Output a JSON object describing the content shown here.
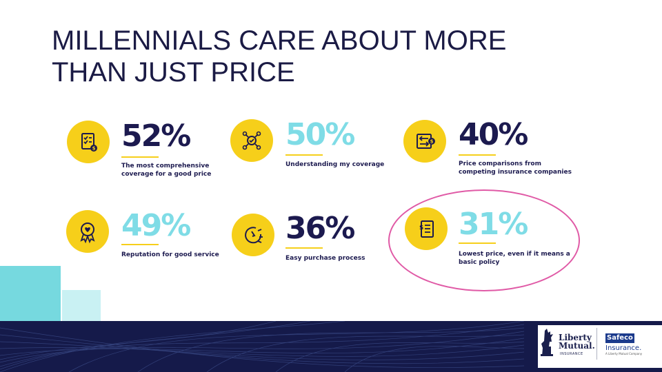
{
  "title_line1": "MILLENNIALS CARE ABOUT MORE",
  "title_line2": "THAN JUST PRICE",
  "stats": [
    {
      "value": "52%",
      "desc_line1": "The most comprehensive",
      "desc_line2": "coverage for a good price",
      "icon": "certificate-dollar-icon"
    },
    {
      "value": "50%",
      "desc_line1": "Understanding my coverage",
      "desc_line2": "",
      "icon": "network-check-icon"
    },
    {
      "value": "40%",
      "desc_line1": "Price comparisons from",
      "desc_line2": "competing insurance companies",
      "icon": "compare-arrows-dollar-icon"
    },
    {
      "value": "49%",
      "desc_line1": "Reputation for good service",
      "desc_line2": "",
      "icon": "award-ribbon-heart-icon"
    },
    {
      "value": "36%",
      "desc_line1": "Easy purchase process",
      "desc_line2": "",
      "icon": "fast-timer-icon"
    },
    {
      "value": "31%",
      "desc_line1": "Lowest price, even if it means a",
      "desc_line2": "basic policy",
      "icon": "price-document-icon"
    }
  ],
  "logos": {
    "liberty_line1": "Liberty",
    "liberty_line2": "Mutual.",
    "liberty_sub": "INSURANCE",
    "safeco_name": "Safeco",
    "safeco_sub": "Insurance.",
    "safeco_tag": "A Liberty Mutual Company"
  },
  "colors": {
    "navy": "#1c1a4f",
    "cyan": "#7fdce6",
    "yellow": "#f6cf1a",
    "highlight": "#e05aa6",
    "band": "#151a4a"
  }
}
